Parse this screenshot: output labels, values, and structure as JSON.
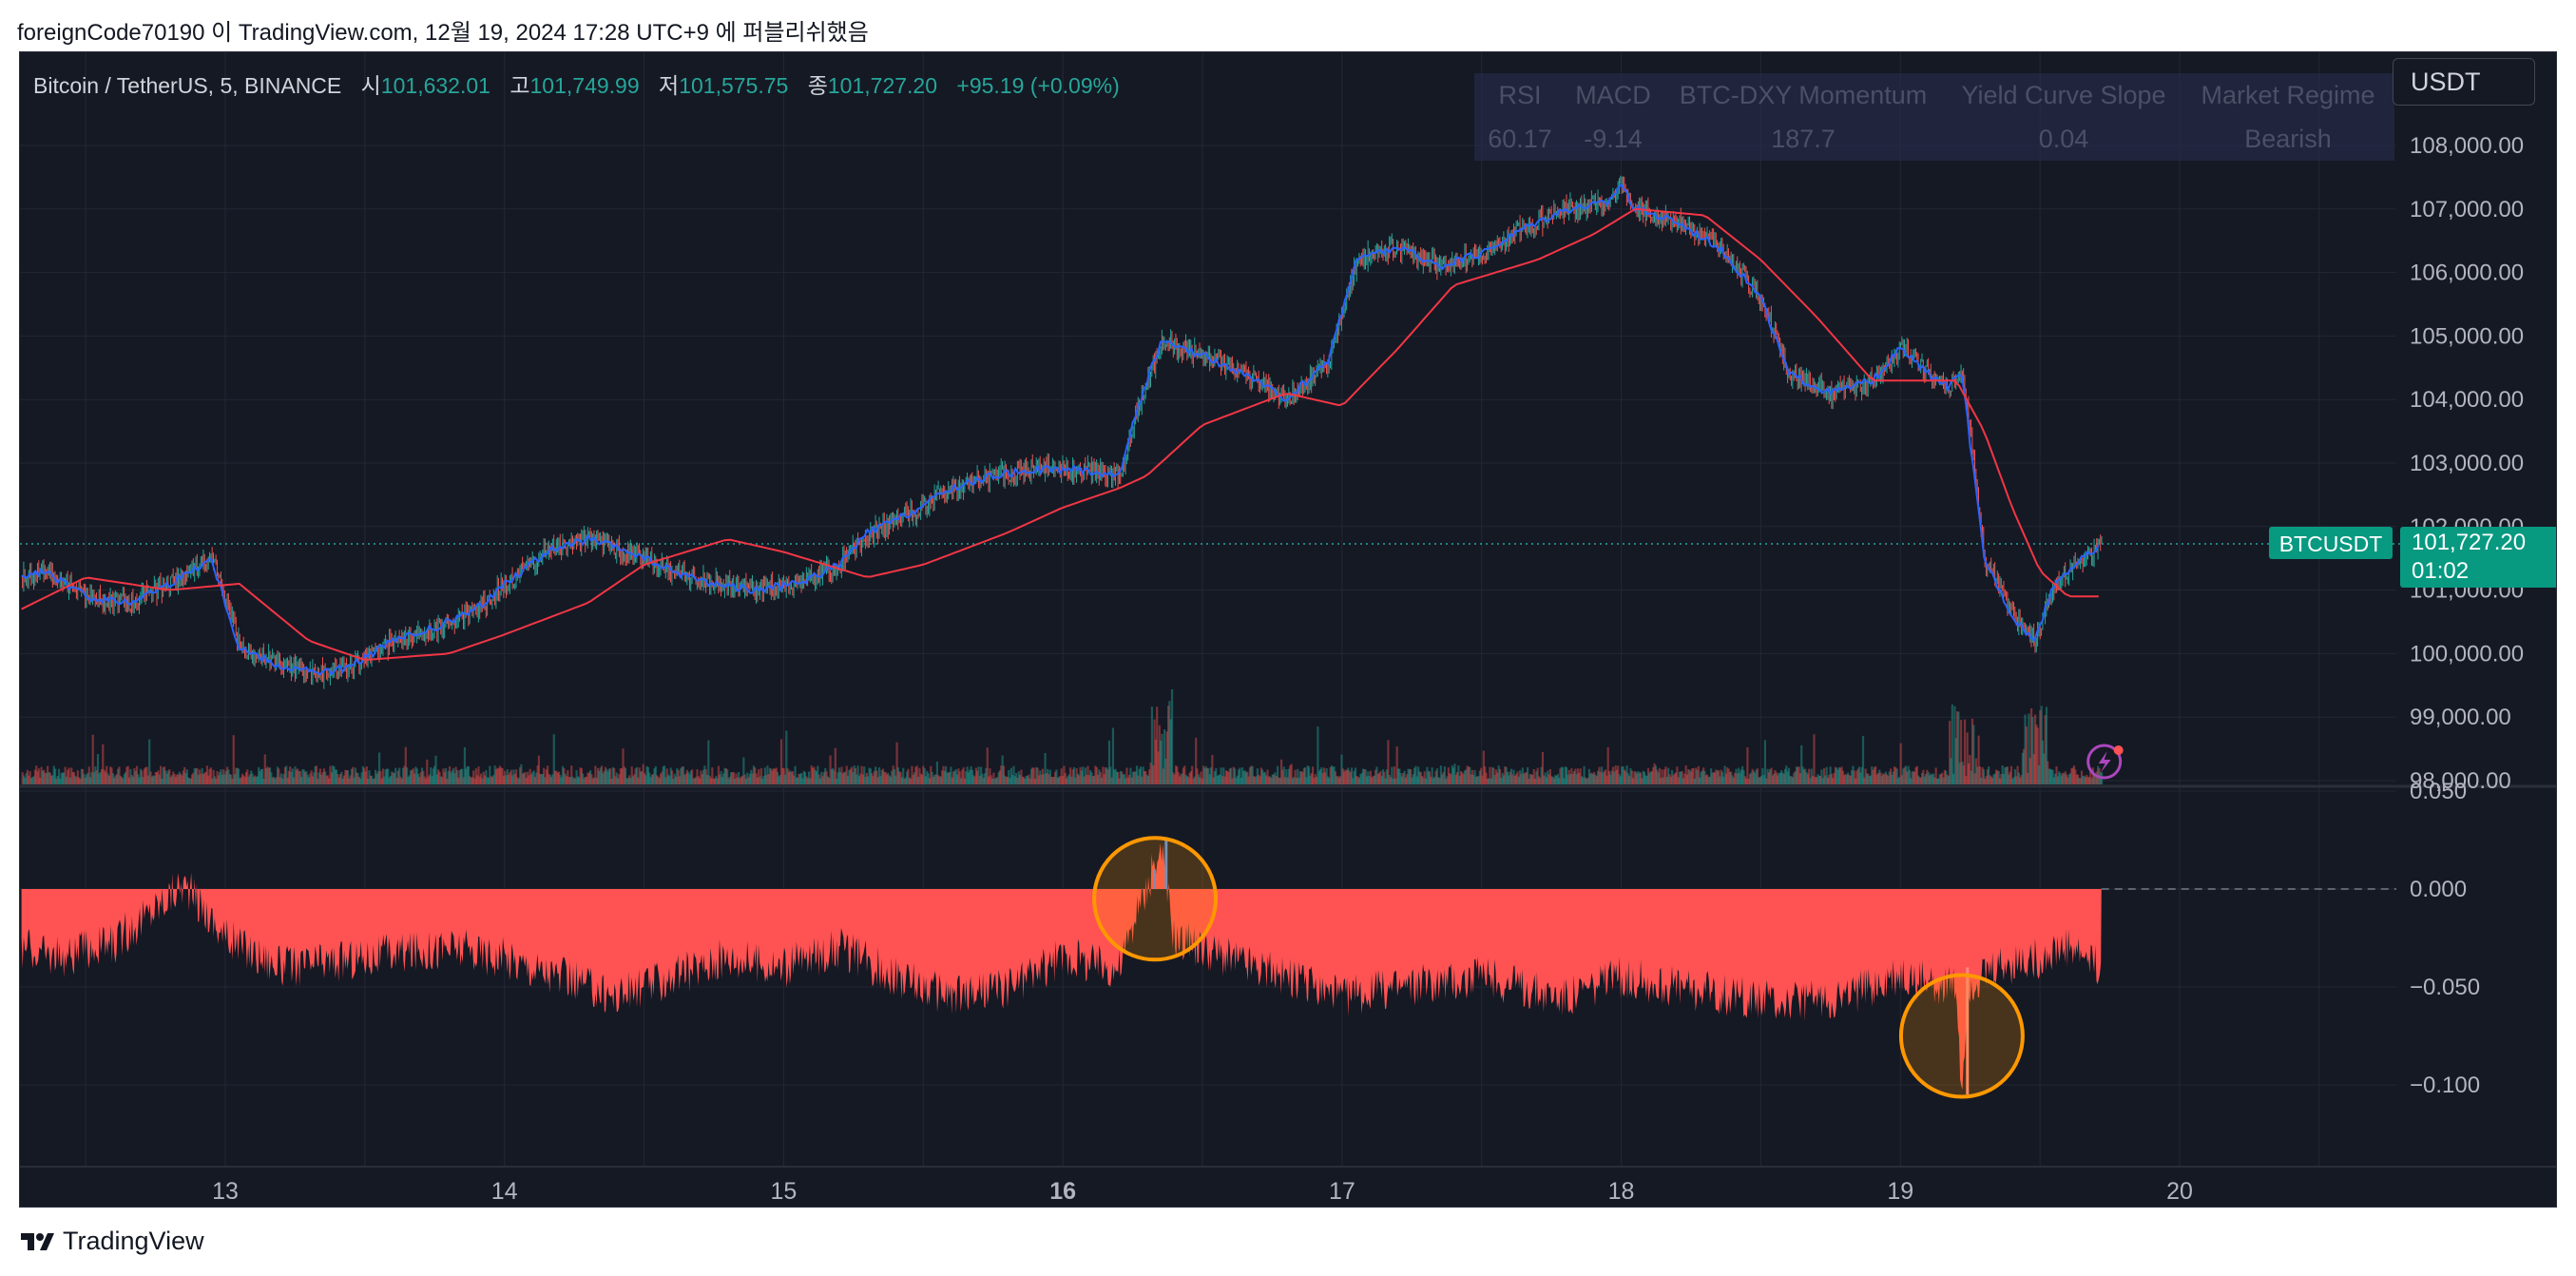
{
  "caption": "foreignCode70190 이 TradingView.com, 12월 19, 2024 17:28 UTC+9 에 퍼블리쉬했음",
  "footer": {
    "brand": "TradingView"
  },
  "symbol": {
    "title": "Bitcoin / TetherUS, 5, BINANCE",
    "open_label": "시",
    "open": "101,632.01",
    "high_label": "고",
    "high": "101,749.99",
    "low_label": "저",
    "low": "101,575.75",
    "close_label": "종",
    "close": "101,727.20",
    "change": "+95.19 (+0.09%)"
  },
  "currency_button": "USDT",
  "indicator_table": {
    "headers": [
      "RSI",
      "MACD",
      "BTC-DXY Momentum",
      "Yield Curve Slope",
      "Market Regime"
    ],
    "values": [
      "60.17",
      "-9.14",
      "187.7",
      "0.04",
      "Bearish"
    ]
  },
  "price_tag": {
    "ticker": "BTCUSDT",
    "price": "101,727.20",
    "countdown": "01:02"
  },
  "colors": {
    "up": "#26a69a",
    "down": "#ef5350",
    "ma_fast": "#2962ff",
    "ma_slow": "#f23645",
    "osc": "#ff5252",
    "highlight": "#ff9800"
  },
  "chart_data": [
    {
      "type": "line",
      "title": "Bitcoin / TetherUS, 5, BINANCE",
      "x_ticks": [
        "13",
        "14",
        "15",
        "16",
        "17",
        "18",
        "19",
        "20"
      ],
      "ylim": [
        98000,
        108500
      ],
      "y_ticks": [
        "108,000.00",
        "107,000.00",
        "106,000.00",
        "105,000.00",
        "104,000.00",
        "103,000.00",
        "102,000.00",
        "101,000.00",
        "100,000.00",
        "99,000.00",
        "98,000.00"
      ],
      "series": [
        {
          "x": [
            12.27,
            12.35,
            12.5,
            12.65,
            12.8,
            12.95,
            13.05,
            13.2,
            13.35,
            13.45,
            13.6,
            13.75,
            13.9,
            14.0,
            14.15,
            14.3,
            14.45,
            14.6,
            14.75,
            14.9,
            15.05,
            15.2,
            15.3,
            15.45,
            15.6,
            15.75,
            15.9,
            16.05,
            16.2,
            16.27,
            16.35,
            16.5,
            16.65,
            16.8,
            16.95,
            17.05,
            17.2,
            17.35,
            17.5,
            17.65,
            17.8,
            17.95,
            18.0,
            18.05,
            18.2,
            18.35,
            18.5,
            18.6,
            18.75,
            18.9,
            19.0,
            19.1,
            19.17,
            19.22,
            19.3,
            19.4,
            19.48,
            19.55,
            19.62,
            19.72
          ],
          "values": [
            101200,
            101300,
            100900,
            100800,
            101100,
            101500,
            100100,
            99800,
            99700,
            99800,
            100200,
            100400,
            100700,
            101100,
            101600,
            101800,
            101600,
            101300,
            101100,
            101000,
            101100,
            101400,
            101900,
            102200,
            102600,
            102800,
            102900,
            102900,
            102800,
            103900,
            104900,
            104700,
            104400,
            104000,
            104600,
            106200,
            106400,
            106100,
            106300,
            106700,
            107000,
            107100,
            107400,
            107000,
            106800,
            106400,
            105600,
            104400,
            104100,
            104300,
            104800,
            104400,
            104200,
            104400,
            101500,
            100600,
            100200,
            101100,
            101400,
            101700
          ]
        },
        {
          "x": [
            12.27,
            12.5,
            12.8,
            13.05,
            13.3,
            13.5,
            13.8,
            14.0,
            14.3,
            14.5,
            14.8,
            15.0,
            15.3,
            15.5,
            15.8,
            16.0,
            16.2,
            16.3,
            16.5,
            16.8,
            17.0,
            17.2,
            17.4,
            17.7,
            17.9,
            18.05,
            18.3,
            18.5,
            18.7,
            18.9,
            19.1,
            19.2,
            19.3,
            19.4,
            19.5,
            19.6,
            19.72
          ],
          "values": [
            100700,
            101200,
            101000,
            101100,
            100200,
            99900,
            100000,
            100300,
            100800,
            101400,
            101800,
            101600,
            101200,
            101400,
            101900,
            102300,
            102600,
            102800,
            103600,
            104100,
            103900,
            104800,
            105800,
            106200,
            106600,
            107000,
            106900,
            106200,
            105300,
            104300,
            104300,
            104300,
            103500,
            102300,
            101300,
            100900,
            100900
          ]
        }
      ]
    },
    {
      "type": "area",
      "ylim": [
        -0.125,
        0.05
      ],
      "y_ticks": [
        "0.050",
        "0.000",
        "−0.050",
        "−0.100"
      ],
      "x": [
        12.27,
        12.4,
        12.6,
        12.85,
        13.0,
        13.2,
        13.5,
        13.8,
        14.0,
        14.2,
        14.4,
        14.6,
        14.8,
        15.0,
        15.2,
        15.4,
        15.6,
        15.8,
        16.0,
        16.2,
        16.35,
        16.4,
        16.5,
        16.8,
        17.0,
        17.2,
        17.5,
        17.8,
        18.0,
        18.2,
        18.4,
        18.6,
        18.8,
        19.0,
        19.2,
        19.22,
        19.24,
        19.35,
        19.5,
        19.6,
        19.72
      ],
      "values": [
        -0.03,
        -0.035,
        -0.028,
        0.003,
        -0.025,
        -0.04,
        -0.035,
        -0.03,
        -0.035,
        -0.045,
        -0.055,
        -0.045,
        -0.035,
        -0.04,
        -0.03,
        -0.045,
        -0.055,
        -0.05,
        -0.035,
        -0.04,
        0.02,
        -0.025,
        -0.03,
        -0.045,
        -0.055,
        -0.05,
        -0.045,
        -0.055,
        -0.045,
        -0.05,
        -0.055,
        -0.058,
        -0.055,
        -0.045,
        -0.05,
        -0.105,
        -0.05,
        -0.04,
        -0.035,
        -0.03,
        -0.04
      ]
    }
  ]
}
